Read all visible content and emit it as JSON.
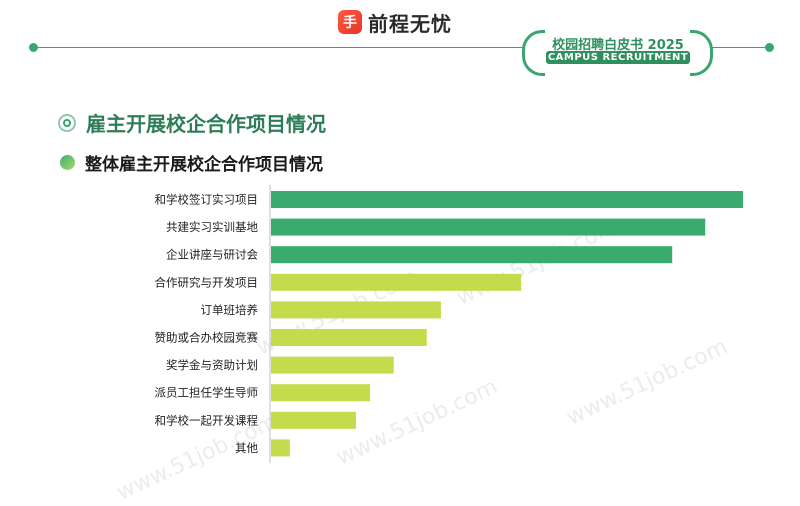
{
  "brand": {
    "logo_text": "前程无忧",
    "logo_mark": "手"
  },
  "badge": {
    "line1": "校园招聘白皮书 2025",
    "line2": "CAMPUS RECRUITMENT"
  },
  "section_title": "雇主开展校企合作项目情况",
  "chart_title": "整体雇主开展校企合作项目情况",
  "watermark": "www.51job.com",
  "colors": {
    "primary": "#3aaa6f",
    "secondary": "#c4dc4c"
  },
  "chart_data": {
    "type": "bar",
    "orientation": "horizontal",
    "title": "整体雇主开展校企合作项目情况",
    "categories": [
      "和学校签订实习项目",
      "共建实习实训基地",
      "企业讲座与研讨会",
      "合作研究与开发项目",
      "订单班培养",
      "赞助或合办校园竞赛",
      "奖学金与资助计划",
      "派员工担任学生导师",
      "和学校一起开发课程",
      "其他"
    ],
    "values": [
      100,
      92,
      85,
      53,
      36,
      33,
      26,
      21,
      18,
      4
    ],
    "value_unit": "relative (unlabeled)",
    "bar_colors": [
      "#3aaa6f",
      "#3aaa6f",
      "#3aaa6f",
      "#c4dc4c",
      "#c4dc4c",
      "#c4dc4c",
      "#c4dc4c",
      "#c4dc4c",
      "#c4dc4c",
      "#c4dc4c"
    ],
    "xlim": [
      0,
      100
    ],
    "grid": false,
    "legend": "none"
  }
}
